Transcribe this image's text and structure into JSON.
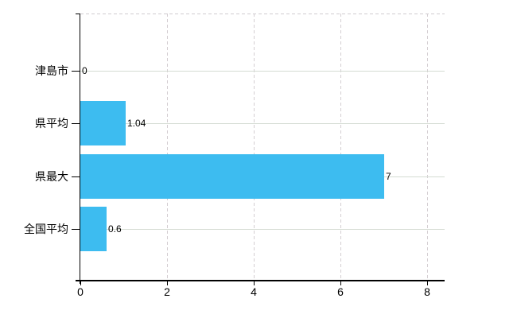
{
  "chart_data": {
    "type": "bar",
    "orientation": "horizontal",
    "title": "",
    "xlabel": "",
    "ylabel": "",
    "categories": [
      "津島市",
      "県平均",
      "県最大",
      "全国平均"
    ],
    "values": [
      0,
      1.04,
      7,
      0.6
    ],
    "value_labels": [
      "0",
      "1.04",
      "7",
      "0.6"
    ],
    "x_ticks": [
      "0",
      "2",
      "4",
      "6",
      "8"
    ],
    "xlim": [
      0,
      8.4
    ],
    "grid": true,
    "legend": false,
    "bar_color": "#3dbcf0",
    "h_gridline_color": "#d5dcd3",
    "v_gridline_color": "#d4ced2",
    "axis_color": "#000000"
  }
}
